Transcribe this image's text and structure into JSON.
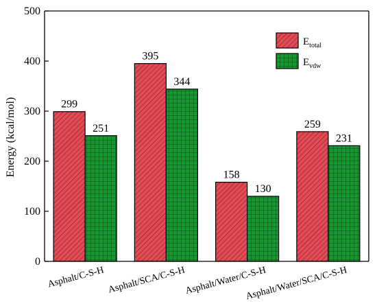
{
  "chart_data": {
    "type": "bar",
    "title": "",
    "xlabel": "",
    "ylabel": "Energy (kcal/mol)",
    "ylim": [
      0,
      500
    ],
    "yticks": [
      0,
      100,
      200,
      300,
      400,
      500
    ],
    "grid": false,
    "legend_position": "top-right",
    "categories": [
      "Asphalt/C-S-H",
      "Asphalt/SCA/C-S-H",
      "Asphalt/Water/C-S-H",
      "Asphalt/Water/SCA/C-S-H"
    ],
    "series": [
      {
        "name": "E_total",
        "legend_main": "E",
        "legend_sub": "total",
        "values": [
          299,
          395,
          158,
          259
        ],
        "color": "#e24a54",
        "pattern": "diagonal-hatch"
      },
      {
        "name": "E_vdw",
        "legend_main": "E",
        "legend_sub": "vdw",
        "values": [
          251,
          344,
          130,
          231
        ],
        "color": "#129a2e",
        "pattern": "grid"
      }
    ]
  }
}
